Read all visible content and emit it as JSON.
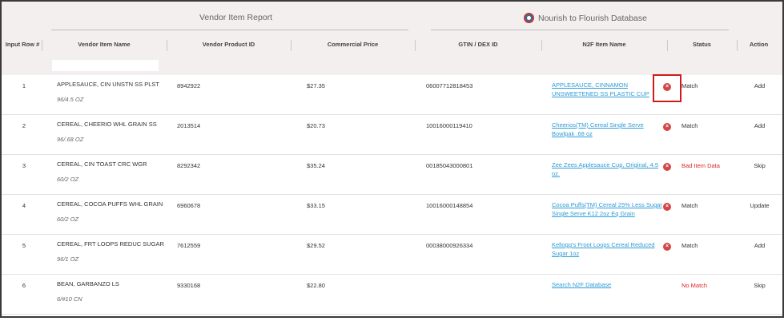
{
  "header": {
    "vendor_group": "Vendor Item Report",
    "n2f_group": "Nourish to Flourish Database"
  },
  "columns": {
    "input_row": "Input Row #",
    "vendor_item_name": "Vendor Item Name",
    "vendor_product_id": "Vendor Product ID",
    "commercial_price": "Commercial Price",
    "gtin": "GTIN / DEX ID",
    "n2f_item_name": "N2F Item Name",
    "status": "Status",
    "action": "Action"
  },
  "filter": {
    "value": ""
  },
  "remove_icon": "×",
  "rows": [
    {
      "num": "1",
      "name": "APPLESAUCE, CIN UNSTN SS PLST",
      "pack": "96/4.5 OZ",
      "pid": "8942922",
      "price": "$27.35",
      "gtin": "06007712818453",
      "n2f": "APPLESAUCE, CINNAMON UNSWEETENED SS PLASTIC CUP",
      "has_x": true,
      "status": "Match",
      "status_color": "#333333",
      "action": "Add"
    },
    {
      "num": "2",
      "name": "CEREAL, CHEERIO WHL GRAIN SS",
      "pack": "96/.68 OZ",
      "pid": "2013514",
      "price": "$20.73",
      "gtin": "10016000119410",
      "n2f": "Cheerios(TM) Cereal Single Serve Bowlpak .68 oz",
      "has_x": true,
      "status": "Match",
      "status_color": "#333333",
      "action": "Add"
    },
    {
      "num": "3",
      "name": "CEREAL, CIN TOAST CRC WGR",
      "pack": "60/2 OZ",
      "pid": "8292342",
      "price": "$35.24",
      "gtin": "00185043000801",
      "n2f": "Zee Zees Applesauce Cup, Original, 4.5 oz.",
      "has_x": true,
      "status": "Bad Item Data",
      "status_color": "#e02424",
      "action": "Skip"
    },
    {
      "num": "4",
      "name": "CEREAL, COCOA PUFFS WHL GRAIN",
      "pack": "60/2 OZ",
      "pid": "6960678",
      "price": "$33.15",
      "gtin": "10016000148854",
      "n2f": "Cocoa Puffs(TM) Cereal 25% Less Sugar Single Serve K12 2oz Eq Grain",
      "has_x": true,
      "status": "Match",
      "status_color": "#333333",
      "action": "Update"
    },
    {
      "num": "5",
      "name": "CEREAL, FRT LOOPS REDUC SUGAR",
      "pack": "96/1 OZ",
      "pid": "7612559",
      "price": "$29.52",
      "gtin": "00038000926334",
      "n2f": "Kellogg's Froot Loops Cereal Reduced Sugar 1oz",
      "has_x": true,
      "status": "Match",
      "status_color": "#333333",
      "action": "Add"
    },
    {
      "num": "6",
      "name": "BEAN, GARBANZO LS",
      "pack": "6/#10 CN",
      "pid": "9330168",
      "price": "$22.80",
      "gtin": "",
      "n2f": "Search N2F Database",
      "has_x": false,
      "status": "No Match",
      "status_color": "#e02424",
      "action": "Skip"
    }
  ]
}
